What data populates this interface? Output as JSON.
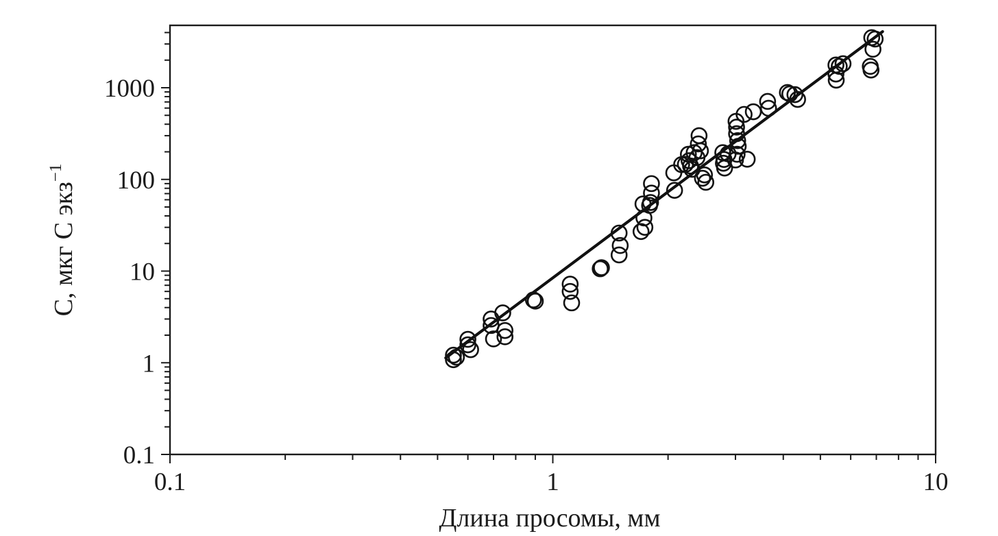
{
  "figure": {
    "background_color": "#ffffff",
    "ink_color": "#1b1b1b",
    "marker_color": "#121212",
    "line_color": "#111111"
  },
  "chart_data": {
    "type": "scatter",
    "title": "",
    "xlabel": "Длина просомы, мм",
    "ylabel": "С, мкг С экз",
    "ylabel_superscript": "−1",
    "x_scale": "log",
    "y_scale": "log",
    "xlim": [
      0.1,
      10
    ],
    "ylim": [
      0.1,
      4800
    ],
    "x_major_ticks": [
      0.1,
      1,
      10
    ],
    "x_tick_labels": [
      "0.1",
      "1",
      "10"
    ],
    "y_major_ticks": [
      0.1,
      1,
      10,
      100,
      1000
    ],
    "y_tick_labels": [
      "0.1",
      "1",
      "10",
      "100",
      "1000"
    ],
    "grid": false,
    "legend": false,
    "marker": "open-circle",
    "regression_line": {
      "x1": 0.525,
      "y1": 1.13,
      "x2": 7.27,
      "y2": 4100
    },
    "points": [
      [
        0.55,
        1.21
      ],
      [
        0.55,
        1.08
      ],
      [
        0.56,
        1.15
      ],
      [
        0.6,
        1.8
      ],
      [
        0.6,
        1.57
      ],
      [
        0.61,
        1.39
      ],
      [
        0.69,
        3.0
      ],
      [
        0.69,
        2.55
      ],
      [
        0.7,
        1.82
      ],
      [
        0.74,
        3.5
      ],
      [
        0.75,
        2.25
      ],
      [
        0.75,
        1.92
      ],
      [
        0.89,
        4.85
      ],
      [
        0.9,
        4.7
      ],
      [
        1.11,
        7.2
      ],
      [
        1.11,
        6.0
      ],
      [
        1.12,
        4.5
      ],
      [
        1.33,
        10.6
      ],
      [
        1.34,
        10.9
      ],
      [
        1.49,
        26
      ],
      [
        1.5,
        19
      ],
      [
        1.49,
        15
      ],
      [
        1.7,
        27
      ],
      [
        1.72,
        54
      ],
      [
        1.73,
        38
      ],
      [
        1.74,
        30
      ],
      [
        1.81,
        90
      ],
      [
        1.81,
        71
      ],
      [
        1.8,
        56
      ],
      [
        1.79,
        52
      ],
      [
        2.07,
        118
      ],
      [
        2.08,
        76
      ],
      [
        2.17,
        145
      ],
      [
        2.22,
        146
      ],
      [
        2.26,
        188
      ],
      [
        2.29,
        140
      ],
      [
        2.31,
        129
      ],
      [
        2.34,
        196
      ],
      [
        2.27,
        160
      ],
      [
        2.41,
        300
      ],
      [
        2.4,
        244
      ],
      [
        2.43,
        205
      ],
      [
        2.38,
        173
      ],
      [
        2.46,
        103
      ],
      [
        2.49,
        112
      ],
      [
        2.51,
        93
      ],
      [
        2.78,
        196
      ],
      [
        2.8,
        165
      ],
      [
        2.79,
        150
      ],
      [
        2.81,
        133
      ],
      [
        2.87,
        190
      ],
      [
        3.01,
        430
      ],
      [
        3.02,
        372
      ],
      [
        3.02,
        315
      ],
      [
        3.04,
        265
      ],
      [
        3.05,
        230
      ],
      [
        3.03,
        188
      ],
      [
        3.0,
        163
      ],
      [
        3.22,
        166
      ],
      [
        3.16,
        512
      ],
      [
        3.34,
        547
      ],
      [
        3.64,
        709
      ],
      [
        3.66,
        597
      ],
      [
        4.1,
        887
      ],
      [
        4.16,
        858
      ],
      [
        4.29,
        841
      ],
      [
        4.36,
        746
      ],
      [
        5.49,
        1770
      ],
      [
        5.6,
        1710
      ],
      [
        5.73,
        1830
      ],
      [
        5.49,
        1410
      ],
      [
        5.5,
        1210
      ],
      [
        6.81,
        3520
      ],
      [
        6.95,
        3400
      ],
      [
        6.86,
        2630
      ],
      [
        6.75,
        1710
      ],
      [
        6.78,
        1560
      ]
    ]
  }
}
